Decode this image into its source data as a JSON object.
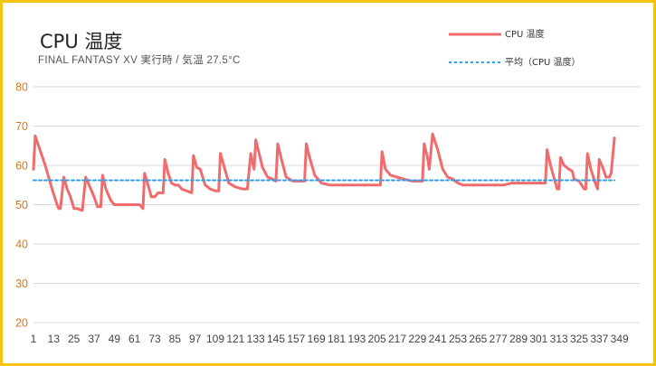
{
  "chart_data": {
    "type": "line",
    "title": "CPU 温度",
    "subtitle": "FINAL FANTASY XV 実行時 / 気温 27.5°C",
    "xlabel": "",
    "ylabel": "",
    "ylim": [
      20,
      80
    ],
    "yticks": [
      20,
      30,
      40,
      50,
      60,
      70,
      80
    ],
    "xlim": [
      1,
      361
    ],
    "xticks": [
      1,
      13,
      25,
      37,
      49,
      61,
      73,
      85,
      97,
      109,
      121,
      133,
      145,
      157,
      169,
      181,
      193,
      205,
      217,
      229,
      241,
      253,
      265,
      277,
      289,
      301,
      313,
      325,
      337,
      349
    ],
    "grid": true,
    "legend_position": "top-right",
    "colors": {
      "cpu": "#f06c6c",
      "average": "#3a9be0",
      "yaxis_ticks": "#d07a22",
      "frame": "#f2c40f"
    },
    "series": [
      {
        "name": "CPU 温度",
        "style": "solid",
        "points": [
          [
            1,
            59
          ],
          [
            2,
            67.5
          ],
          [
            4,
            65
          ],
          [
            8,
            60
          ],
          [
            12,
            54
          ],
          [
            15,
            50
          ],
          [
            16,
            49
          ],
          [
            17,
            49
          ],
          [
            19,
            57
          ],
          [
            21,
            54
          ],
          [
            23,
            52
          ],
          [
            25,
            49
          ],
          [
            27,
            49
          ],
          [
            30,
            48.5
          ],
          [
            32,
            57
          ],
          [
            35,
            54
          ],
          [
            37,
            52
          ],
          [
            39,
            49.5
          ],
          [
            41,
            49.5
          ],
          [
            42,
            57.5
          ],
          [
            44,
            54
          ],
          [
            47,
            51
          ],
          [
            49,
            50
          ],
          [
            52,
            50
          ],
          [
            58,
            50
          ],
          [
            64,
            50
          ],
          [
            66,
            49
          ],
          [
            67,
            58
          ],
          [
            69,
            55
          ],
          [
            71,
            52
          ],
          [
            73,
            52
          ],
          [
            75,
            53
          ],
          [
            78,
            53
          ],
          [
            79,
            61.5
          ],
          [
            81,
            58
          ],
          [
            83,
            55.5
          ],
          [
            85,
            55
          ],
          [
            87,
            55
          ],
          [
            89,
            54
          ],
          [
            92,
            53.5
          ],
          [
            95,
            53
          ],
          [
            96,
            62.5
          ],
          [
            98,
            59.5
          ],
          [
            100,
            59
          ],
          [
            103,
            55
          ],
          [
            106,
            54
          ],
          [
            109,
            53.5
          ],
          [
            111,
            53.5
          ],
          [
            112,
            63
          ],
          [
            114,
            60
          ],
          [
            117,
            55.5
          ],
          [
            121,
            54.5
          ],
          [
            125,
            54
          ],
          [
            128,
            54
          ],
          [
            130,
            63
          ],
          [
            132,
            59
          ],
          [
            133,
            66.5
          ],
          [
            135,
            63
          ],
          [
            137,
            59.5
          ],
          [
            140,
            57
          ],
          [
            143,
            56.5
          ],
          [
            145,
            56
          ],
          [
            146,
            65.5
          ],
          [
            148,
            62
          ],
          [
            151,
            57
          ],
          [
            155,
            56
          ],
          [
            159,
            56
          ],
          [
            162,
            56
          ],
          [
            163,
            65.5
          ],
          [
            165,
            62
          ],
          [
            168,
            57.5
          ],
          [
            172,
            55.5
          ],
          [
            177,
            55
          ],
          [
            182,
            55
          ],
          [
            190,
            55
          ],
          [
            200,
            55
          ],
          [
            207,
            55
          ],
          [
            208,
            63.5
          ],
          [
            210,
            59
          ],
          [
            213,
            57.5
          ],
          [
            217,
            57
          ],
          [
            221,
            56.5
          ],
          [
            226,
            56
          ],
          [
            230,
            56
          ],
          [
            232,
            56
          ],
          [
            233,
            65.5
          ],
          [
            235,
            62
          ],
          [
            236,
            59
          ],
          [
            238,
            68
          ],
          [
            241,
            64
          ],
          [
            244,
            59
          ],
          [
            247,
            57
          ],
          [
            250,
            56.5
          ],
          [
            253,
            55.5
          ],
          [
            256,
            55
          ],
          [
            265,
            55
          ],
          [
            280,
            55
          ],
          [
            285,
            55.5
          ],
          [
            292,
            55.5
          ],
          [
            301,
            55.5
          ],
          [
            305,
            55.5
          ],
          [
            306,
            64
          ],
          [
            308,
            60
          ],
          [
            312,
            54
          ],
          [
            313,
            54
          ],
          [
            314,
            62
          ],
          [
            316,
            60
          ],
          [
            319,
            59
          ],
          [
            321,
            58.5
          ],
          [
            322,
            56.5
          ],
          [
            325,
            56
          ],
          [
            328,
            54
          ],
          [
            329,
            54
          ],
          [
            330,
            63
          ],
          [
            332,
            59
          ],
          [
            335,
            55
          ],
          [
            336,
            54
          ],
          [
            337,
            61.5
          ],
          [
            339,
            59.5
          ],
          [
            341,
            57
          ],
          [
            343,
            57
          ],
          [
            344,
            58
          ],
          [
            346,
            67
          ]
        ]
      },
      {
        "name": "平均（CPU 温度）",
        "style": "dashed",
        "points": [
          [
            1,
            56.2
          ],
          [
            346,
            56.2
          ]
        ]
      }
    ]
  }
}
